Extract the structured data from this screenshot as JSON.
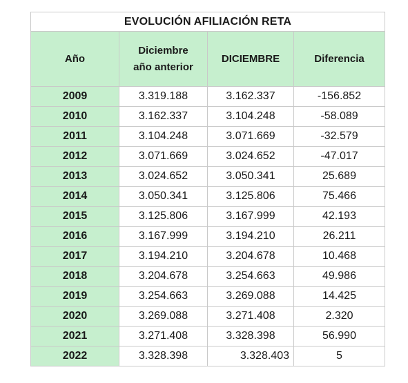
{
  "table": {
    "title": "EVOLUCIÓN AFILIACIÓN RETA",
    "headers": {
      "year": "Año",
      "prev_line1": "Diciembre",
      "prev_line2": "año anterior",
      "current": "DICIEMBRE",
      "diff": "Diferencia"
    },
    "rows": [
      {
        "year": "2009",
        "prev": "3.319.188",
        "current": "3.162.337",
        "diff": "-156.852"
      },
      {
        "year": "2010",
        "prev": "3.162.337",
        "current": "3.104.248",
        "diff": "-58.089"
      },
      {
        "year": "2011",
        "prev": "3.104.248",
        "current": "3.071.669",
        "diff": "-32.579"
      },
      {
        "year": "2012",
        "prev": "3.071.669",
        "current": "3.024.652",
        "diff": "-47.017"
      },
      {
        "year": "2013",
        "prev": "3.024.652",
        "current": "3.050.341",
        "diff": "25.689"
      },
      {
        "year": "2014",
        "prev": "3.050.341",
        "current": "3.125.806",
        "diff": "75.466"
      },
      {
        "year": "2015",
        "prev": "3.125.806",
        "current": "3.167.999",
        "diff": "42.193"
      },
      {
        "year": "2016",
        "prev": "3.167.999",
        "current": "3.194.210",
        "diff": "26.211"
      },
      {
        "year": "2017",
        "prev": "3.194.210",
        "current": "3.204.678",
        "diff": "10.468"
      },
      {
        "year": "2018",
        "prev": "3.204.678",
        "current": "3.254.663",
        "diff": "49.986"
      },
      {
        "year": "2019",
        "prev": "3.254.663",
        "current": "3.269.088",
        "diff": "14.425"
      },
      {
        "year": "2020",
        "prev": "3.269.088",
        "current": "3.271.408",
        "diff": "2.320"
      },
      {
        "year": "2021",
        "prev": "3.271.408",
        "current": "3.328.398",
        "diff": "56.990"
      },
      {
        "year": "2022",
        "prev": "3.328.398",
        "current": "3.328.403",
        "diff": "5"
      }
    ]
  },
  "colors": {
    "header_fill": "#c6efce",
    "grid": "#c9c9c9"
  }
}
